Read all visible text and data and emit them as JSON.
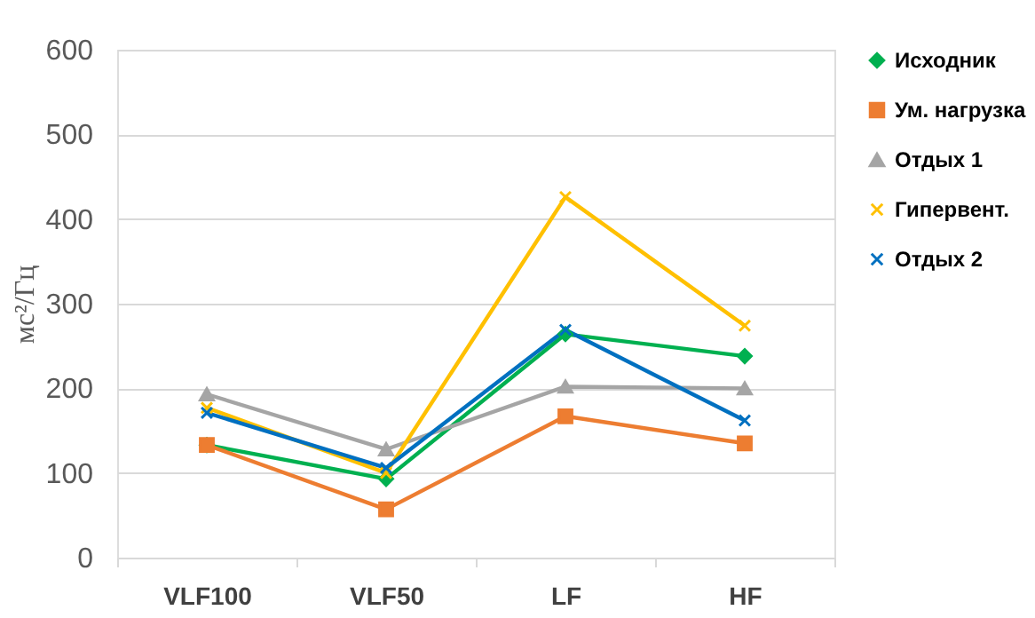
{
  "chart_data": {
    "type": "line",
    "ylabel": "мс²/Гц",
    "categories": [
      "VLF100",
      "VLF50",
      "LF",
      "HF"
    ],
    "ylim": [
      0,
      600
    ],
    "yticks": [
      0,
      100,
      200,
      300,
      400,
      500,
      600
    ],
    "grid": "y",
    "legend": "right",
    "series": [
      {
        "name": "Исходник",
        "color": "#00b050",
        "marker": "diamond",
        "values": [
          133,
          93,
          264,
          238
        ]
      },
      {
        "name": "Ум. нагрузка",
        "color": "#ed7d31",
        "marker": "square",
        "values": [
          133,
          57,
          167,
          135
        ]
      },
      {
        "name": "Отдых 1",
        "color": "#a5a5a5",
        "marker": "triangle",
        "values": [
          193,
          128,
          202,
          200
        ]
      },
      {
        "name": "Гипервент.",
        "color": "#ffc000",
        "marker": "cross",
        "values": [
          177,
          100,
          426,
          274
        ]
      },
      {
        "name": "Отдых 2",
        "color": "#0070c0",
        "marker": "cross",
        "values": [
          171,
          106,
          269,
          162
        ]
      }
    ]
  }
}
